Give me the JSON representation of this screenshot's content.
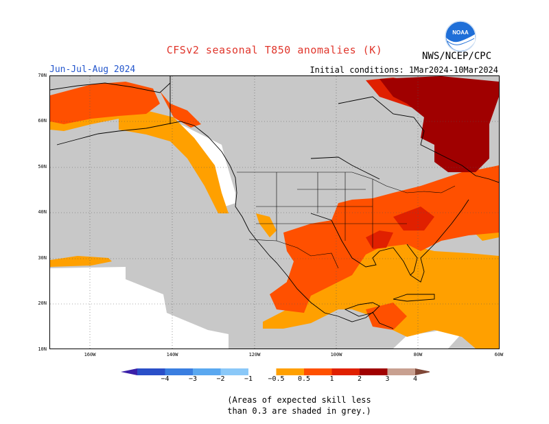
{
  "header": {
    "title": "CFSv2 seasonal T850 anomalies (K)",
    "season": "Jun-Jul-Aug 2024",
    "initial_conditions": "Initial conditions: 1Mar2024-10Mar2024",
    "agency": "NWS/NCEP/CPC",
    "logo_text": "NOAA"
  },
  "map": {
    "region": "North America / North Pacific",
    "lat_labels": [
      "70N",
      "60N",
      "50N",
      "40N",
      "30N",
      "20N",
      "10N"
    ],
    "lon_labels": [
      "160W",
      "140W",
      "120W",
      "100W",
      "80W",
      "60W"
    ],
    "colors": {
      "skill_masked": "#c8c8c8",
      "anom_0_5_1": "#ffa000",
      "anom_1_2": "#ff5000",
      "anom_2_3": "#e02000",
      "anom_3_4": "#a00000",
      "coast": "#000000"
    }
  },
  "colorbar": {
    "labels": [
      "−4",
      "−3",
      "−2",
      "−1",
      "−0.5",
      "0.5",
      "1",
      "2",
      "3",
      "4"
    ],
    "colors": [
      "#3a1fa8",
      "#2a4fc8",
      "#3a7ee0",
      "#5aa8f0",
      "#8ac8f8",
      "#ffffff",
      "#ffa000",
      "#ff5000",
      "#e02000",
      "#a00000",
      "#c8a090",
      "#804838"
    ]
  },
  "note": {
    "line1": "(Areas of expected skill less",
    "line2": "than 0.3 are shaded in grey.)"
  }
}
